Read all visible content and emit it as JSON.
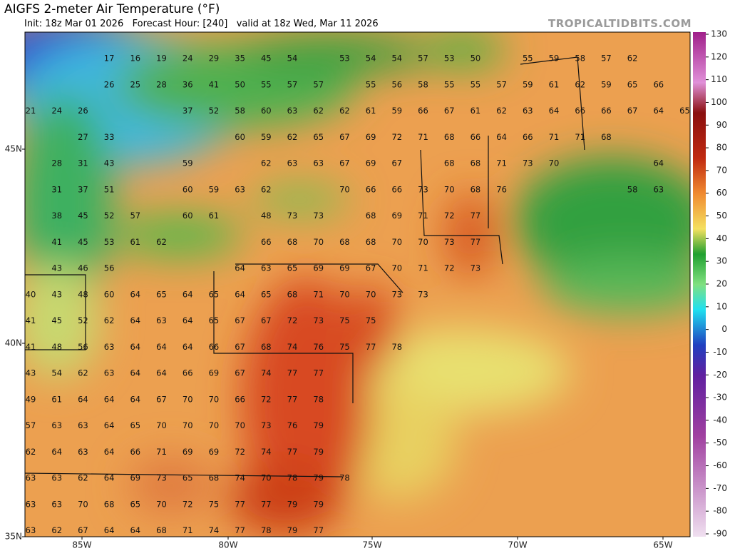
{
  "header": {
    "title": "AIGFS 2-meter Air Temperature (°F)",
    "subtitle": "Init: 18z Mar 01 2026   Forecast Hour: [240]   valid at 18z Wed, Mar 11 2026",
    "brand": "TROPICALTIDBITS.COM"
  },
  "map": {
    "lat_labels": [
      "45N",
      "40N",
      "35N"
    ],
    "lon_labels": [
      "85W",
      "80W",
      "75W",
      "70W",
      "65W"
    ],
    "station_rows": [
      [
        null,
        null,
        null,
        17,
        16,
        19,
        24,
        29,
        35,
        45,
        54,
        null,
        53,
        54,
        54,
        57,
        53,
        50,
        null,
        55,
        59,
        58,
        57,
        62
      ],
      [
        null,
        null,
        null,
        26,
        25,
        28,
        36,
        41,
        50,
        55,
        57,
        57,
        null,
        55,
        56,
        58,
        55,
        55,
        57,
        59,
        61,
        62,
        59,
        65,
        66
      ],
      [
        21,
        24,
        26,
        null,
        null,
        null,
        37,
        52,
        58,
        60,
        63,
        62,
        62,
        61,
        59,
        66,
        67,
        61,
        62,
        63,
        64,
        66,
        66,
        67,
        64,
        65
      ],
      [
        null,
        null,
        27,
        33,
        null,
        null,
        null,
        null,
        60,
        59,
        62,
        65,
        67,
        69,
        72,
        71,
        68,
        66,
        64,
        66,
        71,
        71,
        68
      ],
      [
        null,
        28,
        31,
        43,
        null,
        null,
        59,
        null,
        null,
        62,
        63,
        63,
        67,
        69,
        67,
        null,
        68,
        68,
        71,
        73,
        70,
        null,
        null,
        null,
        64
      ],
      [
        null,
        31,
        37,
        51,
        null,
        null,
        60,
        59,
        63,
        62,
        null,
        null,
        70,
        66,
        66,
        73,
        70,
        68,
        76,
        null,
        null,
        null,
        null,
        58,
        63
      ],
      [
        null,
        38,
        45,
        52,
        57,
        null,
        60,
        61,
        null,
        48,
        73,
        73,
        null,
        68,
        69,
        71,
        72,
        77
      ],
      [
        null,
        41,
        45,
        53,
        61,
        62,
        null,
        null,
        null,
        66,
        68,
        70,
        68,
        68,
        70,
        70,
        73,
        77
      ],
      [
        null,
        43,
        46,
        56,
        null,
        null,
        null,
        null,
        64,
        63,
        65,
        69,
        69,
        67,
        70,
        71,
        72,
        73
      ],
      [
        40,
        43,
        48,
        60,
        64,
        65,
        64,
        65,
        64,
        65,
        68,
        71,
        70,
        70,
        73,
        73
      ],
      [
        41,
        45,
        52,
        62,
        64,
        63,
        64,
        65,
        67,
        67,
        72,
        73,
        75,
        75
      ],
      [
        41,
        48,
        56,
        63,
        64,
        64,
        64,
        66,
        67,
        68,
        74,
        76,
        75,
        77,
        78
      ],
      [
        43,
        54,
        62,
        63,
        64,
        64,
        66,
        69,
        67,
        74,
        77,
        77
      ],
      [
        49,
        61,
        64,
        64,
        64,
        67,
        70,
        70,
        66,
        72,
        77,
        78
      ],
      [
        57,
        63,
        63,
        64,
        65,
        70,
        70,
        70,
        70,
        73,
        76,
        79
      ],
      [
        62,
        64,
        63,
        64,
        66,
        71,
        69,
        69,
        72,
        74,
        77,
        79
      ],
      [
        63,
        63,
        62,
        64,
        69,
        73,
        65,
        68,
        74,
        70,
        78,
        79,
        78
      ],
      [
        63,
        63,
        70,
        68,
        65,
        70,
        72,
        75,
        77,
        77,
        79,
        79
      ],
      [
        63,
        62,
        67,
        64,
        64,
        68,
        71,
        74,
        77,
        78,
        79,
        77
      ]
    ]
  },
  "colorbar": {
    "ticks": [
      130,
      120,
      110,
      100,
      90,
      80,
      70,
      60,
      50,
      40,
      30,
      20,
      10,
      0,
      -10,
      -20,
      -30,
      -40,
      -50,
      -60,
      -70,
      -80,
      -90
    ]
  }
}
